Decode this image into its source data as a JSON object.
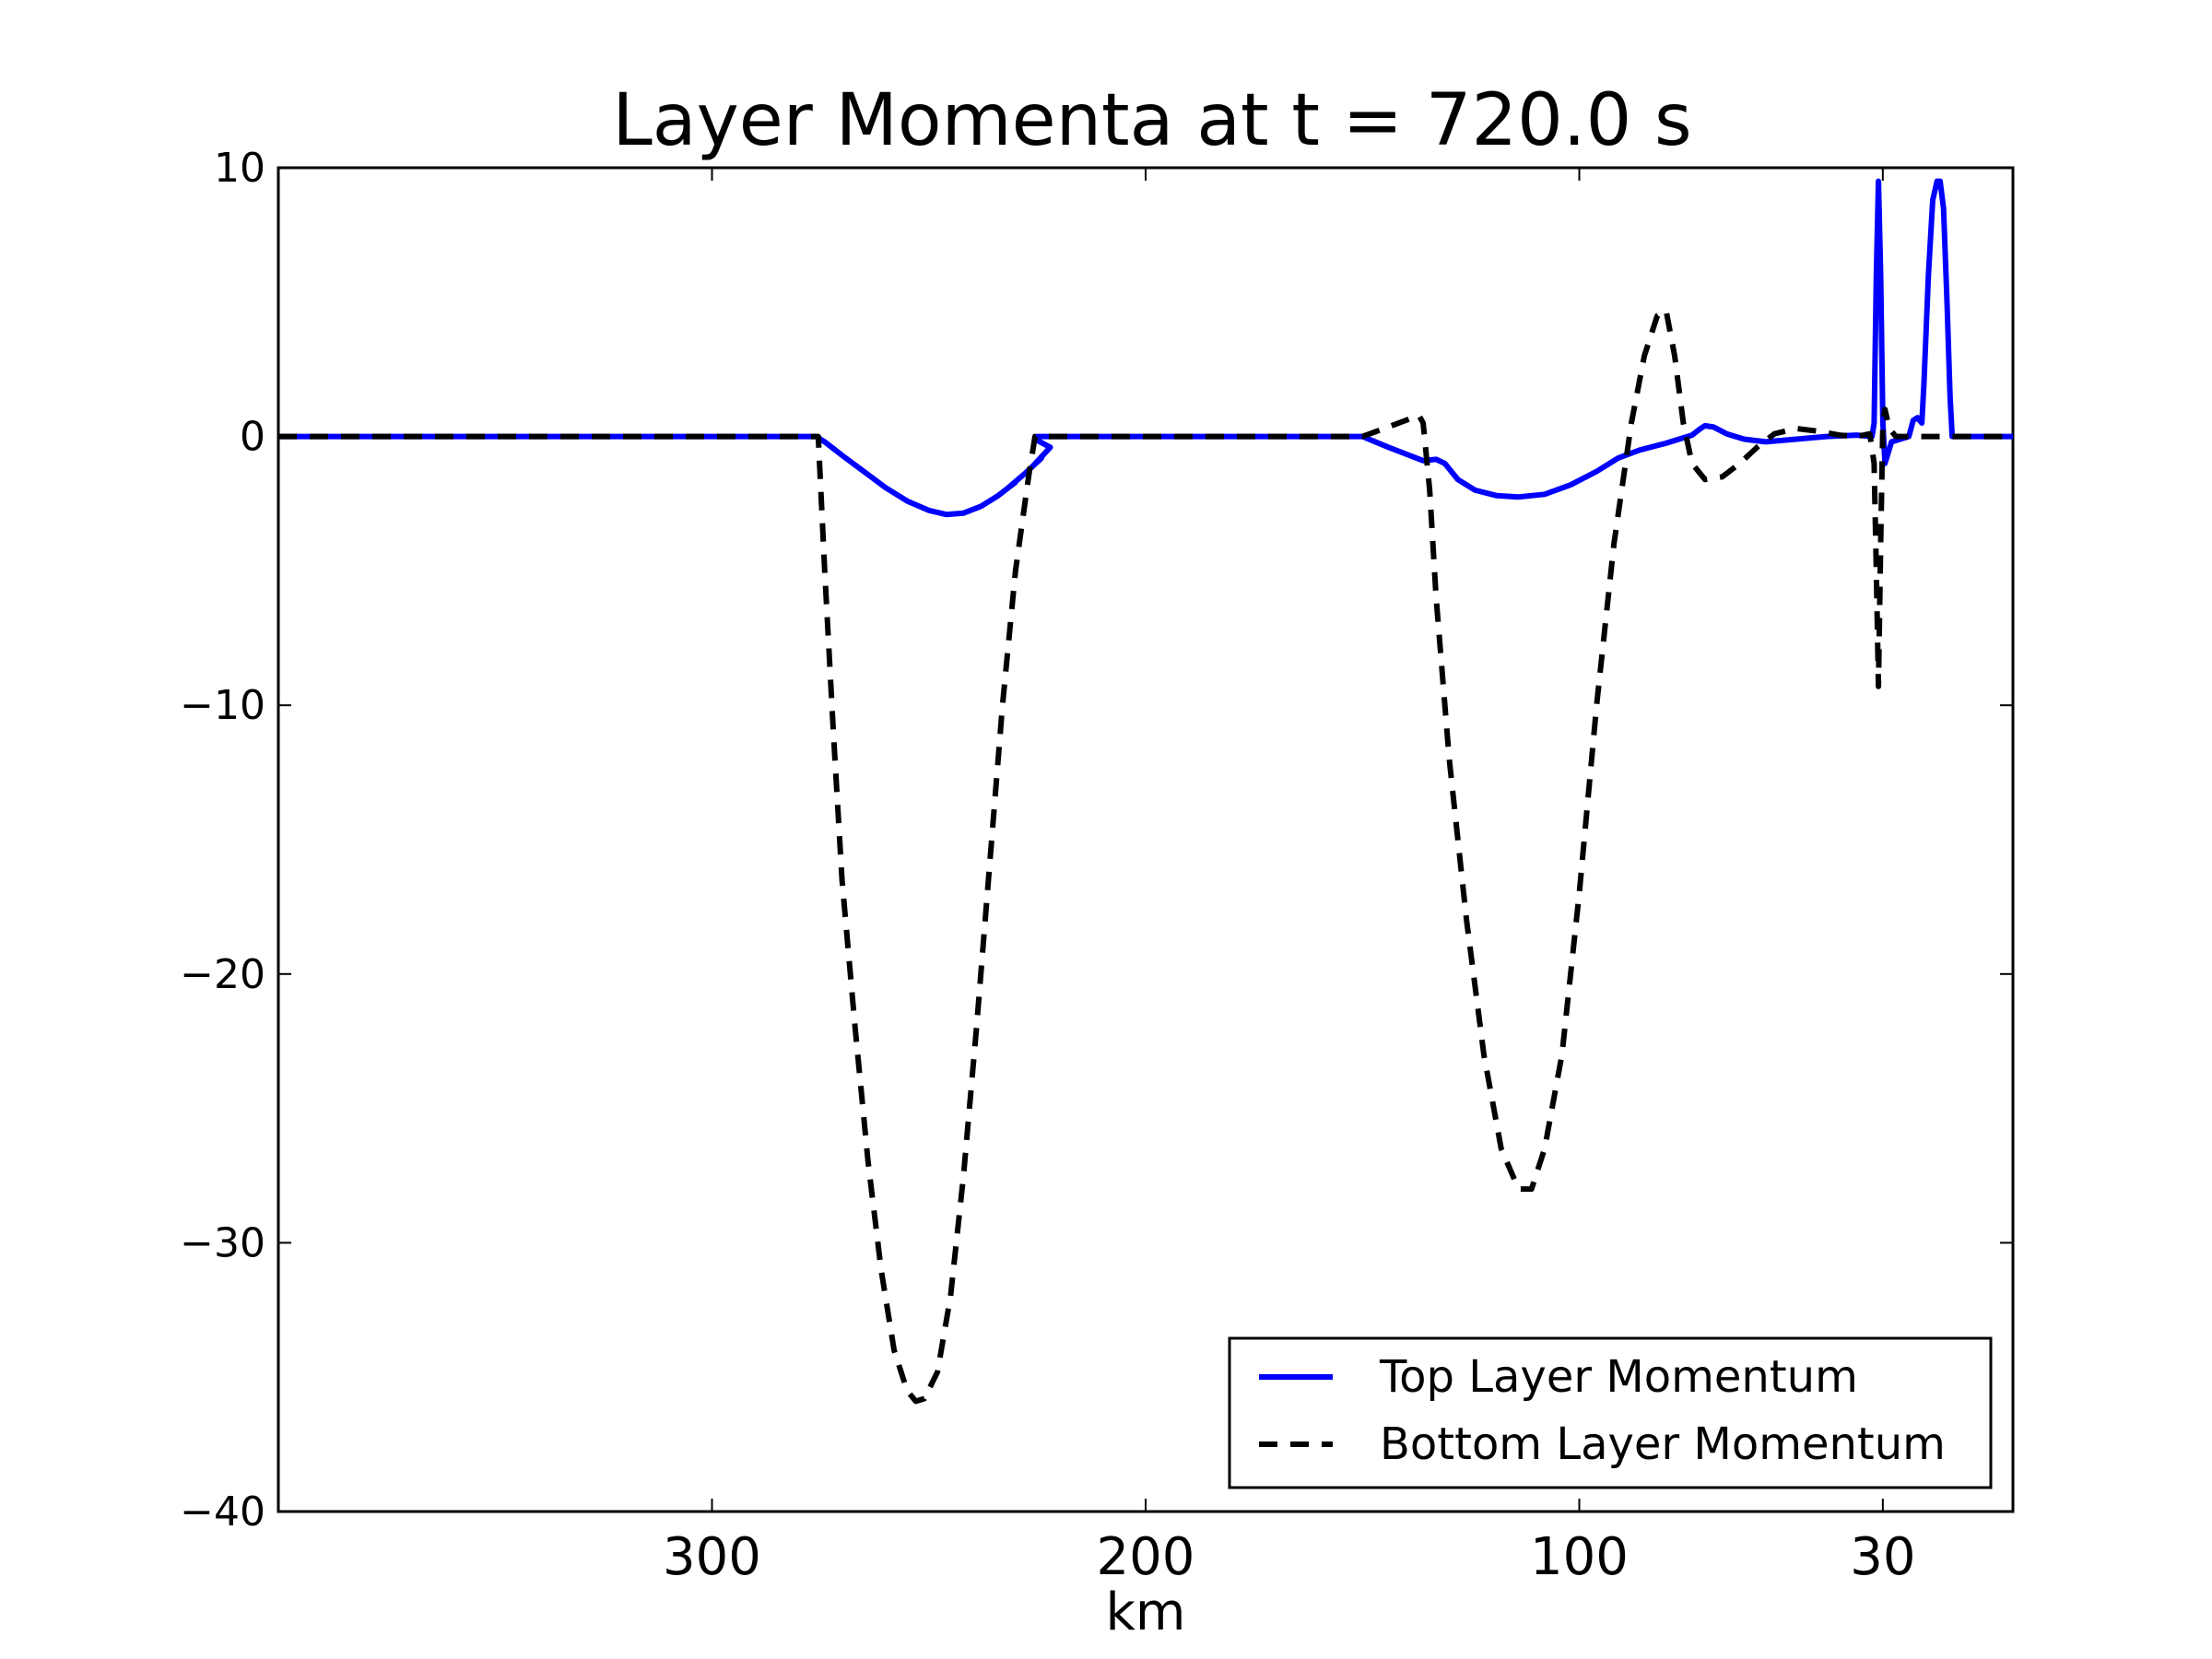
{
  "chart_data": {
    "type": "line",
    "title": "Layer Momenta at t = 720.0 s",
    "xlabel": "km",
    "ylabel": "",
    "xlim": [
      400,
      0
    ],
    "ylim": [
      -40,
      10
    ],
    "x_ticks": [
      300,
      200,
      100,
      30
    ],
    "y_ticks": [
      10,
      0,
      -10,
      -20,
      -30,
      -40
    ],
    "grid": false,
    "legend_position": "lower-right",
    "series": [
      {
        "name": "Top Layer Momentum",
        "color": "#0000ff",
        "style": "solid",
        "points": [
          [
            400,
            0
          ],
          [
            276,
            0
          ],
          [
            274,
            -0.2
          ],
          [
            270,
            -0.7
          ],
          [
            265,
            -1.3
          ],
          [
            260,
            -1.9
          ],
          [
            255,
            -2.4
          ],
          [
            250,
            -2.75
          ],
          [
            246,
            -2.9
          ],
          [
            242,
            -2.85
          ],
          [
            238,
            -2.6
          ],
          [
            234,
            -2.2
          ],
          [
            230,
            -1.7
          ],
          [
            232,
            -1.95
          ],
          [
            228,
            -1.4
          ],
          [
            224,
            -0.8
          ],
          [
            226,
            -1.1
          ],
          [
            222,
            -0.4
          ],
          [
            225.5,
            -0.1
          ],
          [
            225,
            0
          ],
          [
            150,
            0
          ],
          [
            144,
            -0.4
          ],
          [
            136,
            -0.9
          ],
          [
            133,
            -0.85
          ],
          [
            131,
            -1.0
          ],
          [
            128,
            -1.6
          ],
          [
            124,
            -2.0
          ],
          [
            119,
            -2.2
          ],
          [
            114,
            -2.25
          ],
          [
            108,
            -2.15
          ],
          [
            102,
            -1.8
          ],
          [
            96,
            -1.3
          ],
          [
            91,
            -0.8
          ],
          [
            86,
            -0.5
          ],
          [
            80,
            -0.25
          ],
          [
            74,
            0.05
          ],
          [
            72,
            0.3
          ],
          [
            71,
            0.4
          ],
          [
            69,
            0.35
          ],
          [
            66,
            0.1
          ],
          [
            62,
            -0.1
          ],
          [
            57,
            -0.2
          ],
          [
            50,
            -0.1
          ],
          [
            43,
            0
          ],
          [
            36,
            0.05
          ],
          [
            32.5,
            0
          ],
          [
            32,
            0.5
          ],
          [
            31.5,
            6
          ],
          [
            31,
            9.5
          ],
          [
            30.5,
            6
          ],
          [
            30,
            0.5
          ],
          [
            29.5,
            -1.0
          ],
          [
            28,
            -0.2
          ],
          [
            26,
            -0.1
          ],
          [
            24,
            0
          ],
          [
            23,
            0.6
          ],
          [
            22,
            0.7
          ],
          [
            21,
            0.5
          ],
          [
            20.5,
            2
          ],
          [
            19.5,
            6
          ],
          [
            18.5,
            8.8
          ],
          [
            17.5,
            9.5
          ],
          [
            16.8,
            9.5
          ],
          [
            16,
            8.5
          ],
          [
            15.2,
            5
          ],
          [
            14.5,
            1.5
          ],
          [
            14,
            0
          ],
          [
            0,
            0
          ]
        ]
      },
      {
        "name": "Bottom Layer Momentum",
        "color": "#000000",
        "style": "dashed",
        "points": [
          [
            400,
            0
          ],
          [
            275.5,
            0
          ],
          [
            274,
            -5
          ],
          [
            272,
            -11
          ],
          [
            270,
            -16.5
          ],
          [
            267,
            -22
          ],
          [
            264,
            -27
          ],
          [
            261,
            -31
          ],
          [
            258,
            -34
          ],
          [
            255,
            -35.5
          ],
          [
            253,
            -35.9
          ],
          [
            251,
            -35.8
          ],
          [
            248,
            -34.8
          ],
          [
            245,
            -32
          ],
          [
            242,
            -27.5
          ],
          [
            239,
            -22
          ],
          [
            236,
            -16
          ],
          [
            233,
            -10
          ],
          [
            230,
            -5
          ],
          [
            227,
            -1.5
          ],
          [
            225.5,
            0
          ],
          [
            150,
            0
          ],
          [
            145,
            0.3
          ],
          [
            140,
            0.6
          ],
          [
            137,
            0.8
          ],
          [
            136,
            0.5
          ],
          [
            134.5,
            -2
          ],
          [
            133,
            -6
          ],
          [
            130,
            -12
          ],
          [
            126,
            -18
          ],
          [
            122,
            -23
          ],
          [
            118,
            -26.5
          ],
          [
            114,
            -28
          ],
          [
            111,
            -28
          ],
          [
            108,
            -26.5
          ],
          [
            104,
            -23
          ],
          [
            100,
            -17
          ],
          [
            96,
            -10
          ],
          [
            92,
            -4
          ],
          [
            88,
            0.5
          ],
          [
            85,
            3
          ],
          [
            82,
            4.5
          ],
          [
            80,
            4.7
          ],
          [
            78,
            3
          ],
          [
            76,
            0.5
          ],
          [
            74,
            -1.0
          ],
          [
            71,
            -1.6
          ],
          [
            67,
            -1.5
          ],
          [
            63,
            -1
          ],
          [
            59,
            -0.4
          ],
          [
            55,
            0.1
          ],
          [
            50,
            0.3
          ],
          [
            45,
            0.2
          ],
          [
            40,
            0.05
          ],
          [
            36,
            0
          ],
          [
            33,
            0.1
          ],
          [
            32,
            -1
          ],
          [
            31.5,
            -5
          ],
          [
            31,
            -9.3
          ],
          [
            30.5,
            -4
          ],
          [
            30,
            0.5
          ],
          [
            29.5,
            1.0
          ],
          [
            28.5,
            0.3
          ],
          [
            27,
            0
          ],
          [
            0,
            0
          ]
        ]
      }
    ]
  }
}
